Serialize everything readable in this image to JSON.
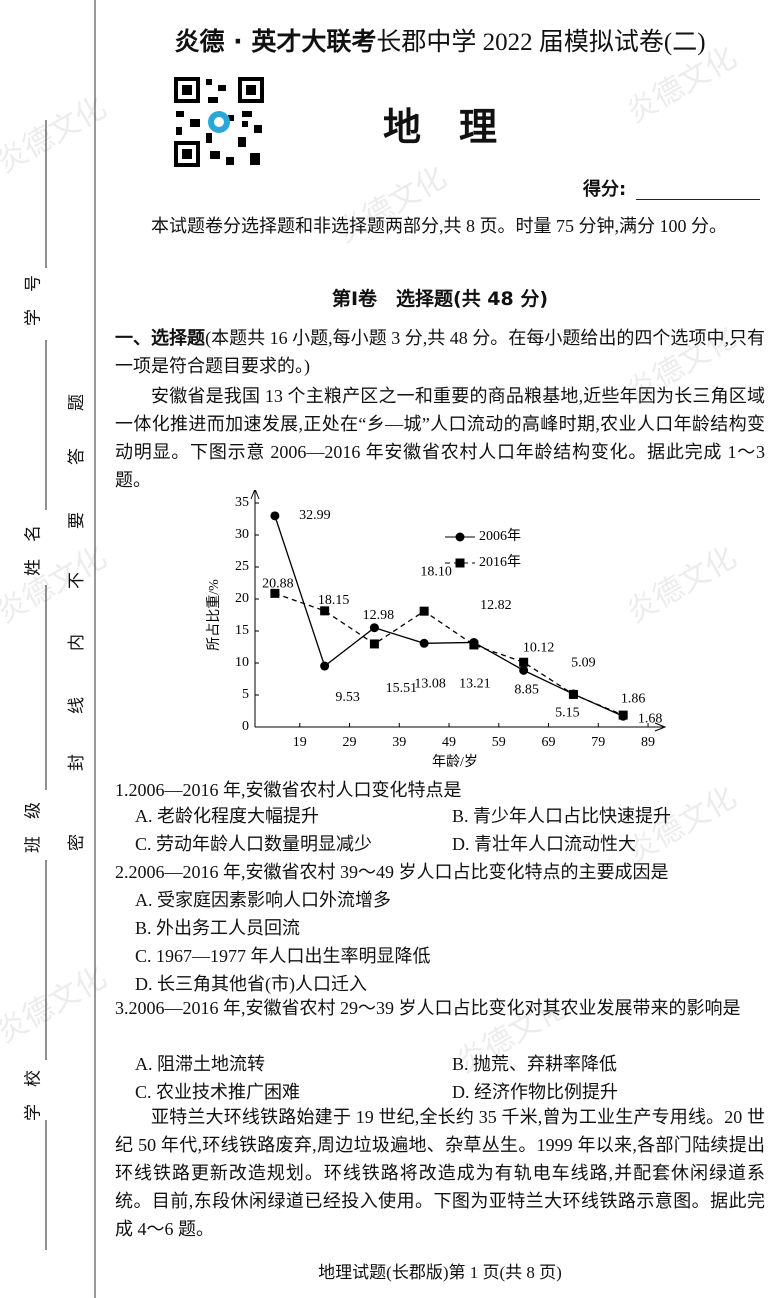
{
  "header": {
    "brand": "炎德 · 英才大联考",
    "title": "长郡中学 2022 届模拟试卷(二)",
    "subject": "地　理",
    "score_label": "得分:"
  },
  "binding": {
    "fields": [
      "学　号",
      "姓　名",
      "班　级",
      "学　校"
    ],
    "seal": [
      "密",
      "封",
      "线",
      "内",
      "不",
      "要",
      "答",
      "题"
    ]
  },
  "watermark": "炎德文化",
  "intro": "本试题卷分选择题和非选择题两部分,共 8 页。时量 75 分钟,满分 100 分。",
  "section_title": "第Ⅰ卷　选择题(共 48 分)",
  "instruction": {
    "label": "一、选择题",
    "text": "(本题共 16 小题,每小题 3 分,共 48 分。在每小题给出的四个选项中,只有一项是符合题目要求的。)"
  },
  "passage_1": "安徽省是我国 13 个主粮产区之一和重要的商品粮基地,近些年因为长三角区域一体化推进而加速发展,正处在“乡—城”人口流动的高峰时期,农业人口年龄结构变动明显。下图示意 2006—2016 年安徽省农村人口年龄结构变化。据此完成 1～3 题。",
  "chart_data": {
    "type": "line",
    "x_label": "年龄/岁",
    "y_label": "所占比重/%",
    "x": [
      14,
      24,
      34,
      44,
      54,
      64,
      74,
      84
    ],
    "series": [
      {
        "name": "2006年",
        "color": "#000000",
        "marker": "circle",
        "linestyle": "solid",
        "values": [
          32.99,
          9.53,
          15.51,
          13.08,
          13.21,
          8.85,
          5.15,
          1.68
        ],
        "value_labels": [
          "32.99",
          "9.53",
          "15.51",
          "13.08",
          "13.21",
          "8.85",
          "5.15",
          "1.68"
        ]
      },
      {
        "name": "2016年",
        "color": "#000000",
        "marker": "square",
        "linestyle": "dashed",
        "values": [
          20.88,
          18.15,
          12.98,
          18.1,
          12.82,
          10.12,
          5.09,
          1.86
        ],
        "value_labels": [
          "20.88",
          "18.15",
          "12.98",
          "18.10",
          "12.82",
          "10.12",
          "5.09",
          "1.86"
        ]
      }
    ],
    "xlim": [
      10,
      90
    ],
    "xticks": [
      19,
      29,
      39,
      49,
      59,
      69,
      79,
      89
    ],
    "ylim": [
      0,
      35
    ],
    "yticks": [
      0,
      5,
      10,
      15,
      20,
      25,
      30,
      35
    ],
    "grid": false,
    "legend": "upper right"
  },
  "questions": [
    {
      "stem": "1.2006—2016 年,安徽省农村人口变化特点是",
      "options": [
        "A. 老龄化程度大幅提升",
        "B. 青少年人口占比快速提升",
        "C. 劳动年龄人口数量明显减少",
        "D. 青壮年人口流动性大"
      ]
    },
    {
      "stem": "2.2006—2016 年,安徽省农村 39～49 岁人口占比变化特点的主要成因是",
      "options": [
        "A. 受家庭因素影响人口外流增多",
        "B. 外出务工人员回流",
        "C. 1967—1977 年人口出生率明显降低",
        "D. 长三角其他省(市)人口迁入"
      ]
    },
    {
      "stem": "3.2006—2016 年,安徽省农村 29～39 岁人口占比变化对其农业发展带来的影响是",
      "options": [
        "A. 阻滞土地流转",
        "B. 抛荒、弃耕率降低",
        "C. 农业技术推广困难",
        "D. 经济作物比例提升"
      ]
    }
  ],
  "passage_2": "亚特兰大环线铁路始建于 19 世纪,全长约 35 千米,曾为工业生产专用线。20 世纪 50 年代,环线铁路废弃,周边垃圾遍地、杂草丛生。1999 年以来,各部门陆续提出环线铁路更新改造规划。环线铁路将改造成为有轨电车线路,并配套休闲绿道系统。目前,东段休闲绿道已经投入使用。下图为亚特兰大环线铁路示意图。据此完成 4～6 题。",
  "footer": "地理试题(长郡版)第 1 页(共 8 页)"
}
